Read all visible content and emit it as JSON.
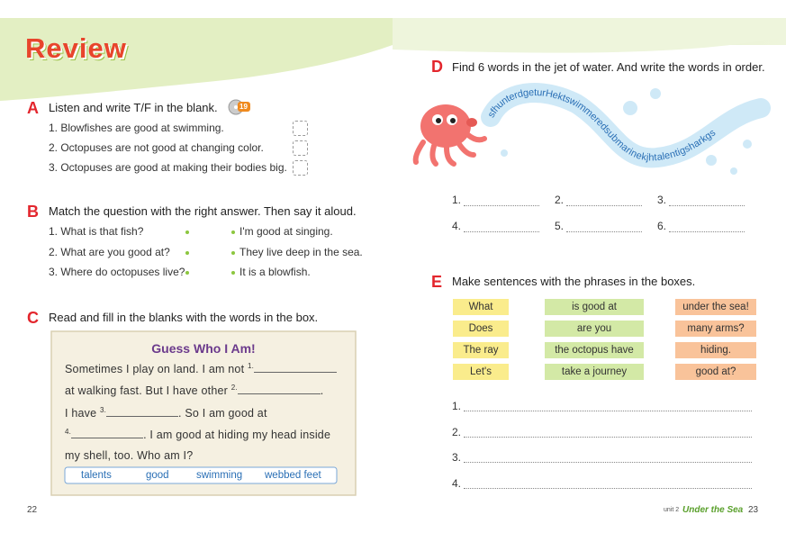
{
  "header": {
    "title": "Review"
  },
  "section_a": {
    "letter": "A",
    "instruction": "Listen and write T/F in the blank.",
    "track": "19",
    "items": [
      "1. Blowfishes are good at swimming.",
      "2. Octopuses are not good at changing color.",
      "3. Octopuses are good at making their bodies big."
    ]
  },
  "section_b": {
    "letter": "B",
    "instruction": "Match the question with the right answer. Then say it aloud.",
    "questions": [
      "1. What is that fish?",
      "2. What are you good at?",
      "3. Where do octopuses live?"
    ],
    "answers": [
      "I'm good at singing.",
      "They live deep in the sea.",
      "It is a blowfish."
    ]
  },
  "section_c": {
    "letter": "C",
    "instruction": "Read and fill in the blanks with the words in the box.",
    "box_title": "Guess Who I Am!",
    "lines": [
      {
        "before": "Sometimes I play on land. I am not",
        "num": "1."
      },
      {
        "before": "at walking fast. But I have other",
        "num": "2.",
        "after": "."
      },
      {
        "before": "I have",
        "num": "3.",
        "after": ". So I am good at"
      },
      {
        "num": "4.",
        "after": ". I am good at hiding my head inside"
      },
      {
        "before": "my shell, too. Who am I?"
      }
    ],
    "words": [
      "talents",
      "good",
      "swimming",
      "webbed feet"
    ]
  },
  "section_d": {
    "letter": "D",
    "instruction": "Find 6 words in the jet of water. And write the words in order.",
    "jet": "sfhunterdgeturHektswimmeredsubmarinekjhtalentigsharkgs",
    "blanks": [
      "1.",
      "2.",
      "3.",
      "4.",
      "5.",
      "6."
    ]
  },
  "section_e": {
    "letter": "E",
    "instruction": "Make sentences with the phrases in the boxes.",
    "column1": [
      "What",
      "Does",
      "The ray",
      "Let's"
    ],
    "column2": [
      "is good at",
      "are you",
      "the octopus have",
      "take a journey"
    ],
    "column3": [
      "under the sea!",
      "many arms?",
      "hiding.",
      "good at?"
    ],
    "sentences": [
      "1.",
      "2.",
      "3.",
      "4."
    ]
  },
  "footer": {
    "left_page": "22",
    "unit": "unit 2",
    "unit_title": "Under the Sea",
    "right_page": "23"
  }
}
